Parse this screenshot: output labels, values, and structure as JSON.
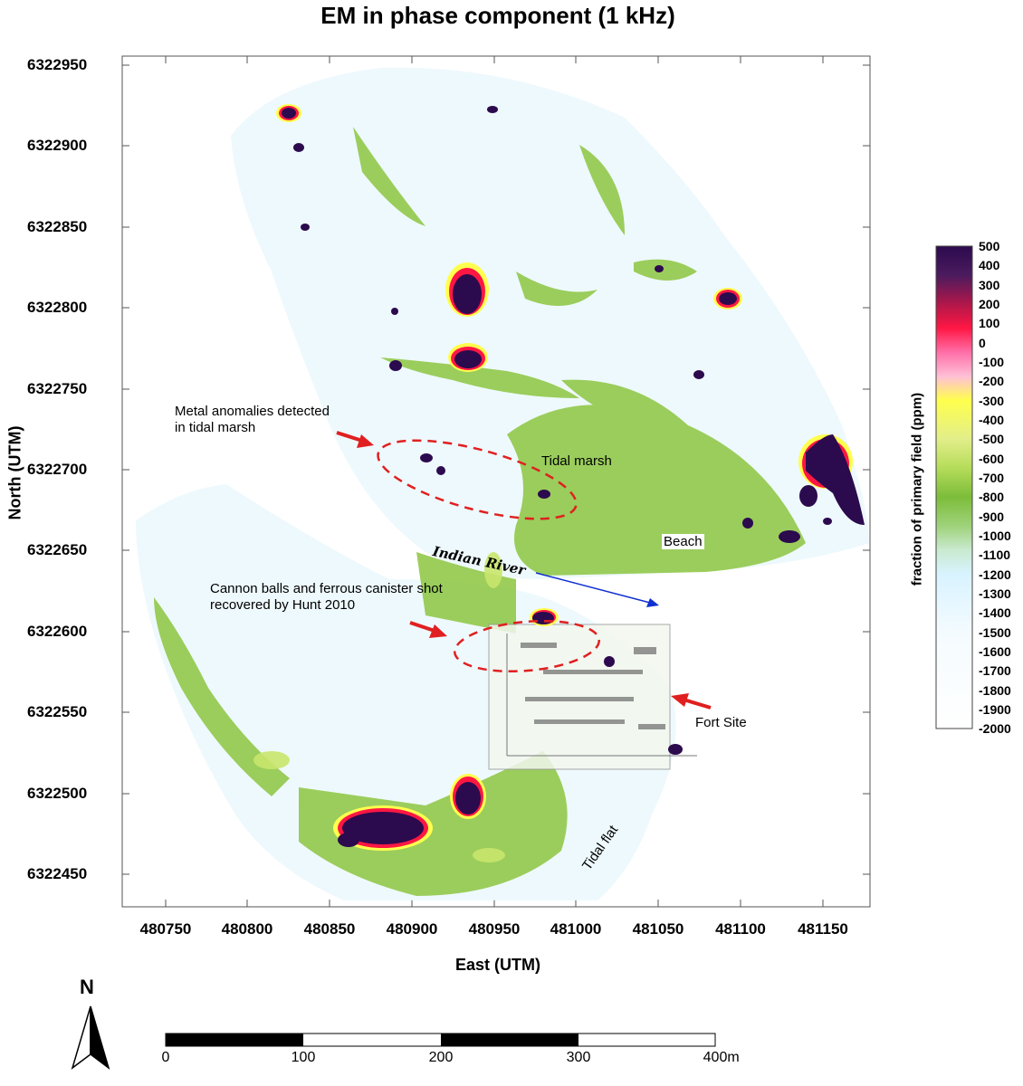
{
  "title": "EM in phase component (1 kHz)",
  "axes": {
    "xlabel": "East (UTM)",
    "ylabel": "North (UTM)",
    "xticks": [
      "480750",
      "480800",
      "480850",
      "480900",
      "480950",
      "481000",
      "481050",
      "481100",
      "481150"
    ],
    "yticks": [
      "6322950",
      "6322900",
      "6322850",
      "6322800",
      "6322750",
      "6322700",
      "6322650",
      "6322600",
      "6322550",
      "6322500",
      "6322450"
    ]
  },
  "colorbar": {
    "label": "fraction of primary field (ppm)",
    "ticks": [
      "500",
      "400",
      "300",
      "200",
      "100",
      "0",
      "-100",
      "-200",
      "-300",
      "-400",
      "-500",
      "-600",
      "-700",
      "-800",
      "-900",
      "-1000",
      "-1100",
      "-1200",
      "-1300",
      "-1400",
      "-1500",
      "-1600",
      "-1700",
      "-1800",
      "-1900",
      "-2000"
    ],
    "colors": [
      "#2c0a4e",
      "#8a1f5a",
      "#ff1744",
      "#ff8fc0",
      "#ffff4d",
      "#c9e56b",
      "#7cbd3a",
      "#9fd27a",
      "#d8f3ff",
      "#ffffff"
    ]
  },
  "annotations": {
    "metal_line1": "Metal anomalies detected",
    "metal_line2": "in tidal marsh",
    "tidal_marsh": "Tidal marsh",
    "beach": "Beach",
    "indian_river": "Indian River",
    "cannon_line1": "Cannon balls and ferrous canister shot",
    "cannon_line2": "recovered by Hunt 2010",
    "fort_site": "Fort Site",
    "tidal_flat": "Tidal flat"
  },
  "north_arrow": {
    "label": "N"
  },
  "scale_bar": {
    "labels": [
      "0",
      "100",
      "200",
      "300",
      "400"
    ],
    "unit": "m"
  }
}
